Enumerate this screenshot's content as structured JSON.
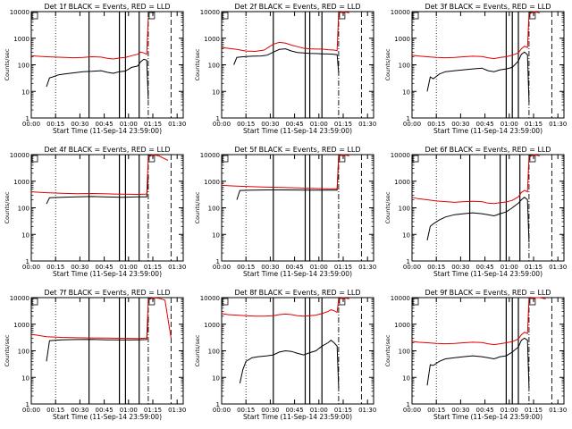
{
  "colors": {
    "events": "#000000",
    "lld": "#e00000",
    "axis": "#000000",
    "background": "#ffffff"
  },
  "chart_data": [
    {
      "type": "line",
      "title": "Det 1f BLACK = Events, RED = LLD",
      "xlabel": "Start Time (11-Sep-14 23:59:00)",
      "ylabel": "Counts/sec",
      "xlim": [
        0,
        100
      ],
      "ylim": [
        1,
        10000
      ],
      "yscale": "log",
      "xticks": [
        "00:00",
        "00:15",
        "00:30",
        "00:45",
        "01:00",
        "01:15",
        "01:30"
      ],
      "yticks": [
        "1",
        "10",
        "100",
        "1000",
        "10000"
      ],
      "solid_markers": [
        38,
        58,
        62,
        71
      ],
      "dotted_markers": [
        16
      ],
      "dashdot_markers": [
        77
      ],
      "dashed_markers": [
        92
      ],
      "series": [
        {
          "name": "Events",
          "x": [
            10,
            12,
            14,
            18,
            22,
            28,
            34,
            40,
            46,
            50,
            54,
            58,
            62,
            66,
            70,
            72,
            74,
            76,
            77
          ],
          "values": [
            15,
            32,
            35,
            42,
            45,
            50,
            55,
            57,
            60,
            52,
            48,
            55,
            58,
            80,
            90,
            130,
            160,
            150,
            5
          ]
        },
        {
          "name": "LLD",
          "x": [
            0,
            4,
            10,
            16,
            22,
            28,
            34,
            40,
            46,
            50,
            54,
            58,
            62,
            66,
            70,
            72,
            74,
            76,
            77
          ],
          "values": [
            220,
            210,
            200,
            195,
            190,
            185,
            190,
            200,
            195,
            175,
            165,
            180,
            190,
            220,
            250,
            300,
            280,
            250,
            6000
          ]
        }
      ]
    },
    {
      "type": "line",
      "title": "Det 2f BLACK = Events, RED = LLD",
      "xlabel": "Start Time (11-Sep-14 23:59:00)",
      "ylabel": "Counts/sec",
      "xlim": [
        0,
        100
      ],
      "ylim": [
        1,
        10000
      ],
      "yscale": "log",
      "xticks": [
        "00:00",
        "00:15",
        "00:30",
        "00:45",
        "01:00",
        "01:15",
        "01:30"
      ],
      "yticks": [
        "1",
        "10",
        "100",
        "1000",
        "10000"
      ],
      "solid_markers": [
        34,
        55,
        58,
        66
      ],
      "dotted_markers": [
        16
      ],
      "dashdot_markers": [
        77
      ],
      "dashed_markers": [
        92
      ],
      "series": [
        {
          "name": "Events",
          "x": [
            8,
            10,
            14,
            20,
            26,
            30,
            34,
            38,
            42,
            46,
            50,
            54,
            58,
            62,
            66,
            70,
            74,
            76,
            77
          ],
          "values": [
            100,
            190,
            200,
            210,
            215,
            230,
            300,
            380,
            400,
            330,
            290,
            280,
            270,
            265,
            260,
            255,
            250,
            240,
            50
          ]
        },
        {
          "name": "LLD",
          "x": [
            0,
            4,
            10,
            16,
            22,
            28,
            34,
            38,
            42,
            46,
            50,
            54,
            58,
            62,
            66,
            70,
            74,
            76,
            77,
            80,
            84
          ],
          "values": [
            450,
            420,
            380,
            330,
            320,
            360,
            600,
            700,
            650,
            550,
            480,
            420,
            400,
            390,
            390,
            370,
            360,
            340,
            9000,
            10000,
            9000
          ]
        }
      ]
    },
    {
      "type": "line",
      "title": "Det 3f BLACK = Events, RED = LLD",
      "xlabel": "Start Time (11-Sep-14 23:59:00)",
      "ylabel": "Counts/sec",
      "xlim": [
        0,
        100
      ],
      "ylim": [
        1,
        10000
      ],
      "yscale": "log",
      "xticks": [
        "00:00",
        "00:15",
        "00:30",
        "00:45",
        "01:00",
        "01:15",
        "01:30"
      ],
      "yticks": [
        "1",
        "10",
        "100",
        "1000",
        "10000"
      ],
      "solid_markers": [
        62,
        66,
        70
      ],
      "dotted_markers": [
        16
      ],
      "dashdot_markers": [
        77
      ],
      "dashed_markers": [
        92
      ],
      "series": [
        {
          "name": "Events",
          "x": [
            10,
            12,
            14,
            18,
            22,
            28,
            34,
            40,
            46,
            50,
            54,
            58,
            62,
            66,
            70,
            72,
            74,
            76,
            77
          ],
          "values": [
            10,
            35,
            30,
            45,
            55,
            60,
            65,
            70,
            75,
            60,
            55,
            65,
            70,
            80,
            140,
            250,
            300,
            240,
            4
          ]
        },
        {
          "name": "LLD",
          "x": [
            0,
            4,
            10,
            16,
            22,
            28,
            34,
            40,
            46,
            50,
            54,
            58,
            62,
            66,
            70,
            72,
            74,
            76,
            77,
            80,
            84
          ],
          "values": [
            230,
            215,
            200,
            190,
            185,
            190,
            200,
            210,
            205,
            185,
            170,
            190,
            200,
            230,
            280,
            400,
            500,
            450,
            8000,
            10000,
            9000
          ]
        }
      ]
    },
    {
      "type": "line",
      "title": "Det 4f BLACK = Events, RED = LLD",
      "xlabel": "Start Time (11-Sep-14 23:59:00)",
      "ylabel": "Counts/sec",
      "xlim": [
        0,
        100
      ],
      "ylim": [
        1,
        10000
      ],
      "yscale": "log",
      "xticks": [
        "00:00",
        "00:15",
        "00:30",
        "00:45",
        "01:00",
        "01:15",
        "01:30"
      ],
      "yticks": [
        "1",
        "10",
        "100",
        "1000",
        "10000"
      ],
      "solid_markers": [
        38,
        58,
        62,
        71
      ],
      "dotted_markers": [
        16
      ],
      "dashdot_markers": [
        77
      ],
      "dashed_markers": [
        92
      ],
      "series": [
        {
          "name": "Events",
          "x": [
            10,
            12,
            20,
            30,
            40,
            50,
            60,
            70,
            76,
            77
          ],
          "values": [
            140,
            240,
            250,
            260,
            265,
            255,
            250,
            260,
            260,
            1500
          ]
        },
        {
          "name": "LLD",
          "x": [
            0,
            10,
            20,
            30,
            40,
            50,
            60,
            70,
            76,
            77,
            80,
            84,
            90
          ],
          "values": [
            400,
            370,
            350,
            340,
            345,
            335,
            325,
            320,
            330,
            8000,
            10000,
            9000,
            6000
          ]
        }
      ]
    },
    {
      "type": "line",
      "title": "Det 5f BLACK = Events, RED = LLD",
      "xlabel": "Start Time (11-Sep-14 23:59:00)",
      "ylabel": "Counts/sec",
      "xlim": [
        0,
        100
      ],
      "ylim": [
        1,
        10000
      ],
      "yscale": "log",
      "xticks": [
        "00:00",
        "00:15",
        "00:30",
        "00:45",
        "01:00",
        "01:15",
        "01:30"
      ],
      "yticks": [
        "1",
        "10",
        "100",
        "1000",
        "10000"
      ],
      "solid_markers": [
        34,
        55,
        58,
        66
      ],
      "dotted_markers": [
        16
      ],
      "dashdot_markers": [
        77
      ],
      "dashed_markers": [
        92
      ],
      "series": [
        {
          "name": "Events",
          "x": [
            10,
            12,
            20,
            30,
            40,
            50,
            60,
            70,
            76,
            77
          ],
          "values": [
            200,
            450,
            460,
            470,
            470,
            465,
            460,
            460,
            460,
            8000
          ]
        },
        {
          "name": "LLD",
          "x": [
            0,
            10,
            20,
            30,
            40,
            50,
            60,
            70,
            76,
            77,
            80,
            84
          ],
          "values": [
            700,
            650,
            620,
            600,
            580,
            560,
            540,
            520,
            520,
            9000,
            10000,
            9000
          ]
        }
      ]
    },
    {
      "type": "line",
      "title": "Det 6f BLACK = Events, RED = LLD",
      "xlabel": "Start Time (11-Sep-14 23:59:00)",
      "ylabel": "Counts/sec",
      "xlim": [
        0,
        100
      ],
      "ylim": [
        1,
        10000
      ],
      "yscale": "log",
      "xticks": [
        "00:00",
        "00:15",
        "00:30",
        "00:45",
        "01:00",
        "01:15",
        "01:30"
      ],
      "yticks": [
        "1",
        "10",
        "100",
        "1000",
        "10000"
      ],
      "solid_markers": [
        38,
        58,
        62,
        71
      ],
      "dotted_markers": [
        16
      ],
      "dashdot_markers": [
        77
      ],
      "dashed_markers": [
        92
      ],
      "series": [
        {
          "name": "Events",
          "x": [
            10,
            12,
            14,
            18,
            22,
            28,
            34,
            40,
            46,
            50,
            54,
            58,
            62,
            66,
            70,
            72,
            74,
            76,
            77
          ],
          "values": [
            6,
            20,
            25,
            35,
            45,
            55,
            60,
            65,
            60,
            55,
            50,
            60,
            70,
            100,
            150,
            200,
            250,
            200,
            5
          ]
        },
        {
          "name": "LLD",
          "x": [
            0,
            4,
            10,
            16,
            22,
            28,
            34,
            40,
            46,
            50,
            54,
            58,
            62,
            66,
            70,
            72,
            74,
            76,
            77,
            80,
            84
          ],
          "values": [
            250,
            220,
            200,
            180,
            170,
            160,
            170,
            175,
            170,
            150,
            145,
            155,
            165,
            190,
            260,
            380,
            450,
            400,
            8000,
            10000,
            9000
          ]
        }
      ]
    },
    {
      "type": "line",
      "title": "Det 7f BLACK = Events, RED = LLD",
      "xlabel": "Start Time (11-Sep-14 23:59:00)",
      "ylabel": "Counts/sec",
      "xlim": [
        0,
        100
      ],
      "ylim": [
        1,
        10000
      ],
      "yscale": "log",
      "xticks": [
        "00:00",
        "00:15",
        "00:30",
        "00:45",
        "01:00",
        "01:15",
        "01:30"
      ],
      "yticks": [
        "1",
        "10",
        "100",
        "1000",
        "10000"
      ],
      "solid_markers": [
        38,
        58,
        62,
        71
      ],
      "dotted_markers": [
        16
      ],
      "dashdot_markers": [
        77
      ],
      "dashed_markers": [
        92
      ],
      "series": [
        {
          "name": "Events",
          "x": [
            10,
            12,
            20,
            30,
            40,
            50,
            60,
            70,
            76,
            77
          ],
          "values": [
            40,
            240,
            260,
            265,
            270,
            260,
            255,
            260,
            265,
            2000
          ]
        },
        {
          "name": "LLD",
          "x": [
            0,
            10,
            20,
            30,
            40,
            50,
            60,
            70,
            76,
            77,
            80,
            84,
            88,
            92
          ],
          "values": [
            420,
            340,
            320,
            310,
            305,
            300,
            295,
            290,
            300,
            8000,
            10000,
            9500,
            8000,
            300
          ]
        }
      ]
    },
    {
      "type": "line",
      "title": "Det 8f BLACK = Events, RED = LLD",
      "xlabel": "Start Time (11-Sep-14 23:59:00)",
      "ylabel": "Counts/sec",
      "xlim": [
        0,
        100
      ],
      "ylim": [
        1,
        10000
      ],
      "yscale": "log",
      "xticks": [
        "00:00",
        "00:15",
        "00:30",
        "00:45",
        "01:00",
        "01:15",
        "01:30"
      ],
      "yticks": [
        "1",
        "10",
        "100",
        "1000",
        "10000"
      ],
      "solid_markers": [
        34,
        55,
        58,
        66
      ],
      "dotted_markers": [
        16
      ],
      "dashdot_markers": [
        77
      ],
      "dashed_markers": [
        92
      ],
      "series": [
        {
          "name": "Events",
          "x": [
            12,
            14,
            16,
            20,
            24,
            30,
            34,
            38,
            42,
            46,
            50,
            54,
            58,
            62,
            66,
            70,
            72,
            74,
            76,
            77
          ],
          "values": [
            6,
            20,
            40,
            55,
            60,
            65,
            70,
            90,
            100,
            95,
            80,
            70,
            85,
            100,
            150,
            200,
            250,
            200,
            150,
            4
          ]
        },
        {
          "name": "LLD",
          "x": [
            0,
            4,
            10,
            16,
            22,
            28,
            34,
            38,
            42,
            46,
            50,
            54,
            58,
            62,
            66,
            70,
            72,
            74,
            76,
            77,
            80,
            84
          ],
          "values": [
            2500,
            2300,
            2200,
            2100,
            2000,
            2000,
            2100,
            2300,
            2400,
            2300,
            2100,
            2000,
            2100,
            2200,
            2500,
            3000,
            3500,
            3200,
            2800,
            9000,
            10000,
            9000
          ]
        }
      ]
    },
    {
      "type": "line",
      "title": "Det 9f BLACK = Events, RED = LLD",
      "xlabel": "Start Time (11-Sep-14 23:59:00)",
      "ylabel": "Counts/sec",
      "xlim": [
        0,
        100
      ],
      "ylim": [
        1,
        10000
      ],
      "yscale": "log",
      "xticks": [
        "00:00",
        "00:15",
        "00:30",
        "00:45",
        "01:00",
        "01:15",
        "01:30"
      ],
      "yticks": [
        "1",
        "10",
        "100",
        "1000",
        "10000"
      ],
      "solid_markers": [
        62,
        66,
        70
      ],
      "dotted_markers": [
        16
      ],
      "dashdot_markers": [
        77
      ],
      "dashed_markers": [
        92
      ],
      "series": [
        {
          "name": "Events",
          "x": [
            10,
            12,
            14,
            18,
            22,
            28,
            34,
            40,
            46,
            50,
            54,
            58,
            62,
            66,
            70,
            72,
            74,
            76,
            77
          ],
          "values": [
            5,
            30,
            28,
            40,
            50,
            55,
            60,
            65,
            60,
            55,
            50,
            60,
            65,
            90,
            140,
            250,
            300,
            250,
            4
          ]
        },
        {
          "name": "LLD",
          "x": [
            0,
            4,
            10,
            16,
            22,
            28,
            34,
            40,
            46,
            50,
            54,
            58,
            62,
            66,
            70,
            72,
            74,
            76,
            77,
            80,
            84,
            88
          ],
          "values": [
            230,
            210,
            200,
            190,
            185,
            190,
            200,
            210,
            205,
            185,
            170,
            185,
            200,
            220,
            280,
            400,
            500,
            450,
            9000,
            10000,
            10000,
            9000
          ]
        }
      ]
    }
  ]
}
